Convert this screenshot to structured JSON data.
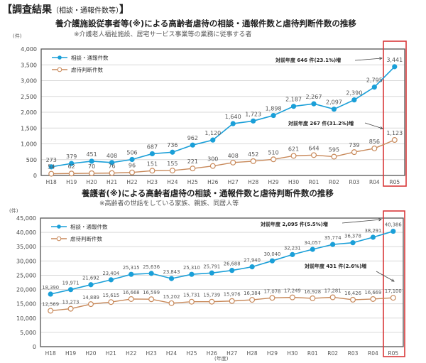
{
  "header": {
    "title": "【調査結果",
    "sub": "（相談・通報件数等）",
    "close": "】"
  },
  "chart_data": [
    {
      "type": "line",
      "title": "養介護施設従事者等(※)による高齢者虐待の相談・通報件数と虐待判断件数の推移",
      "subtitle": "※介護老人福祉施設、居宅サービス事業等の業務に従事する者",
      "ylabel": "(件)",
      "xlabel": "",
      "ylim": [
        0,
        4000
      ],
      "yticks": [
        "0",
        "500",
        "1,000",
        "1,500",
        "2,000",
        "2,500",
        "3,000",
        "3,500",
        "4,000"
      ],
      "grid": true,
      "legend_position": "upper-left",
      "categories": [
        "H18",
        "H19",
        "H20",
        "H21",
        "H22",
        "H23",
        "H24",
        "H25",
        "H26",
        "H27",
        "H28",
        "H29",
        "H30",
        "R01",
        "R02",
        "R03",
        "R04",
        "R05"
      ],
      "series": [
        {
          "name": "相談・通報件数",
          "color": "#1a9fd8",
          "values": [
            273,
            379,
            451,
            408,
            506,
            687,
            736,
            962,
            1120,
            1640,
            1723,
            1898,
            2187,
            2267,
            2097,
            2390,
            2795,
            3441
          ],
          "labels": [
            "273",
            "379",
            "451",
            "408",
            "506",
            "687",
            "736",
            "962",
            "1,120",
            "1,640",
            "1,723",
            "1,898",
            "2,187",
            "2,267",
            "2,097",
            "2,390",
            "2,795",
            "3,441"
          ]
        },
        {
          "name": "虐待判断件数",
          "color": "#c8895a",
          "values": [
            54,
            62,
            70,
            76,
            96,
            151,
            155,
            221,
            300,
            408,
            452,
            510,
            621,
            644,
            595,
            739,
            856,
            1123
          ],
          "labels": [
            "54",
            "62",
            "70",
            "76",
            "96",
            "151",
            "155",
            "221",
            "300",
            "408",
            "452",
            "510",
            "621",
            "644",
            "595",
            "739",
            "856",
            "1,123"
          ]
        }
      ],
      "annotations": [
        {
          "text": "対前年度 646 件(23.1%)増",
          "target": "R05 相談・通報件数"
        },
        {
          "text": "対前年度 267 件(31.2%)増",
          "target": "R05 虐待判断件数"
        }
      ],
      "highlight": "R05"
    },
    {
      "type": "line",
      "title": "養護者(※)による高齢者虐待の相談・通報件数と虐待判断件数の推移",
      "subtitle": "※高齢者の世話をしている家族、親族、同居人等",
      "ylabel": "(件)",
      "xlabel": "(年度)",
      "ylim": [
        0,
        45000
      ],
      "yticks": [
        "0",
        "5,000",
        "10,000",
        "15,000",
        "20,000",
        "25,000",
        "30,000",
        "35,000",
        "40,000",
        "45,000"
      ],
      "grid": true,
      "legend_position": "upper-left",
      "categories": [
        "H18",
        "H19",
        "H20",
        "H21",
        "H22",
        "H23",
        "H24",
        "H25",
        "H26",
        "H27",
        "H28",
        "H29",
        "H30",
        "R01",
        "R02",
        "R03",
        "R04",
        "R05"
      ],
      "series": [
        {
          "name": "相談・通報件数",
          "color": "#1a9fd8",
          "values": [
            18390,
            19971,
            21692,
            23404,
            25315,
            25636,
            23843,
            25310,
            25791,
            26688,
            27940,
            30040,
            32231,
            34057,
            35774,
            36378,
            38291,
            40386
          ],
          "labels": [
            "18,390",
            "19,971",
            "21,692",
            "23,404",
            "25,315",
            "25,636",
            "23,843",
            "25,310",
            "25,791",
            "26,688",
            "27,940",
            "30,040",
            "32,231",
            "34,057",
            "35,774",
            "36,378",
            "38,291",
            "40,386"
          ]
        },
        {
          "name": "虐待判断件数",
          "color": "#c8895a",
          "values": [
            12569,
            13273,
            14889,
            15615,
            16668,
            16599,
            15202,
            15731,
            15739,
            15976,
            16384,
            17078,
            17249,
            16928,
            17281,
            16426,
            16669,
            17100
          ],
          "labels": [
            "12,569",
            "13,273",
            "14,889",
            "15,615",
            "16,668",
            "16,599",
            "15,202",
            "15,731",
            "15,739",
            "15,976",
            "16,384",
            "17,078",
            "17,249",
            "16,928",
            "17,281",
            "16,426",
            "16,669",
            "17,100"
          ]
        }
      ],
      "annotations": [
        {
          "text": "対前年度 2,095 件(5.5%)増",
          "target": "R05 相談・通報件数"
        },
        {
          "text": "対前年度 431 件(2.6%)増",
          "target": "R05 虐待判断件数"
        }
      ],
      "highlight": "R05"
    }
  ]
}
